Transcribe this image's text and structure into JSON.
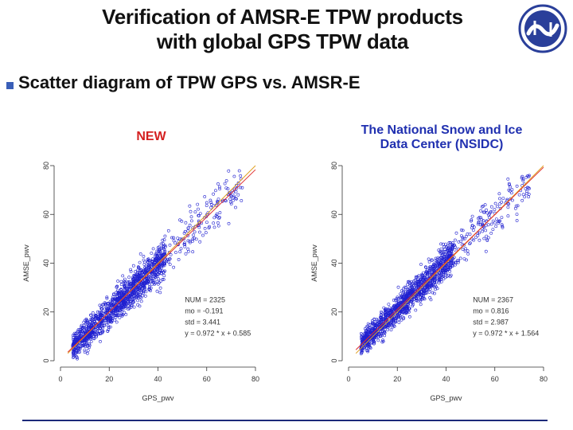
{
  "slide": {
    "title_line1": "Verification of AMSR-E TPW products",
    "title_line2": "with global GPS TPW data",
    "bullet": "Scatter diagram of TPW GPS vs. AMSR-E",
    "accent_color": "#3a5fb8",
    "logo_icon": "wave-circle-logo"
  },
  "chart_data": [
    {
      "type": "scatter",
      "label": "NEW",
      "label_color": "#d42020",
      "xlabel": "GPS_pwv",
      "ylabel": "AMSE_pwv",
      "xlim": [
        0,
        80
      ],
      "ylim": [
        0,
        80
      ],
      "xticks": [
        0,
        20,
        40,
        60,
        80
      ],
      "yticks": [
        0,
        20,
        40,
        60,
        80
      ],
      "stats": {
        "num": "NUM = 2325",
        "mo": "mo = -0.191",
        "std": "std = 3.441",
        "eq": "y = 0.972 * x + 0.585"
      },
      "fit": {
        "slope": 0.972,
        "intercept": 0.585
      },
      "point_color": "#2020d0",
      "fit_color": "#e03030",
      "ref_color": "#e0a020",
      "series": [
        {
          "x_range": [
            2,
            78
          ],
          "count": 2325,
          "spread": 3.441
        }
      ]
    },
    {
      "type": "scatter",
      "label": "The National Snow and Ice Data Center (NSIDC)",
      "label_line1": "The National Snow and Ice",
      "label_line2": "Data Center (NSIDC)",
      "label_color": "#2030b0",
      "xlabel": "GPS_pwv",
      "ylabel": "AMSE_pwv",
      "xlim": [
        0,
        80
      ],
      "ylim": [
        0,
        80
      ],
      "xticks": [
        0,
        20,
        40,
        60,
        80
      ],
      "yticks": [
        0,
        20,
        40,
        60,
        80
      ],
      "stats": {
        "num": "NUM = 2367",
        "mo": "mo = 0.816",
        "std": "std = 2.987",
        "eq": "y = 0.972 * x + 1.564"
      },
      "fit": {
        "slope": 0.972,
        "intercept": 1.564
      },
      "point_color": "#2020d0",
      "fit_color": "#e03030",
      "ref_color": "#e0a020",
      "series": [
        {
          "x_range": [
            2,
            78
          ],
          "count": 2367,
          "spread": 2.987
        }
      ]
    }
  ]
}
